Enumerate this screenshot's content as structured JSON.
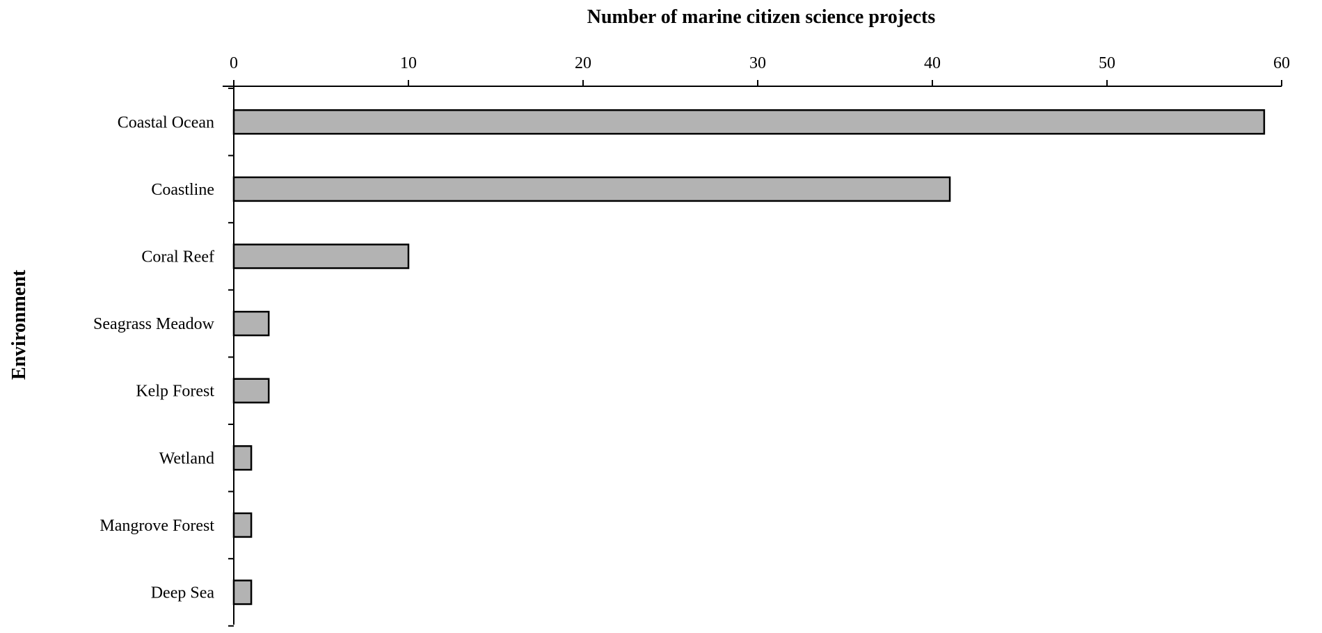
{
  "chart_data": {
    "type": "bar",
    "orientation": "horizontal",
    "title": "",
    "xlabel": "Number of marine citizen science projects",
    "ylabel": "Environment",
    "categories": [
      "Coastal Ocean",
      "Coastline",
      "Coral Reef",
      "Seagrass Meadow",
      "Kelp Forest",
      "Wetland",
      "Mangrove Forest",
      "Deep Sea"
    ],
    "values": [
      59,
      41,
      10,
      2,
      2,
      1,
      1,
      1
    ],
    "xlim": [
      0,
      60
    ],
    "xticks": [
      0,
      10,
      20,
      30,
      40,
      50,
      60
    ],
    "x_axis_position": "top",
    "grid": false,
    "legend": "none",
    "bar_color": "#b3b3b3",
    "edge_color": "#000000"
  }
}
